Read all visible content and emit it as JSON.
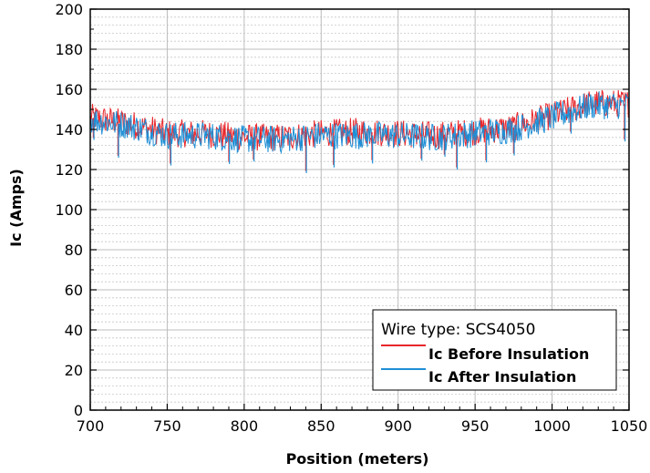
{
  "chart_data": {
    "type": "line",
    "xlabel": "Position (meters)",
    "ylabel": "Ic (Amps)",
    "xlim": [
      700,
      1050
    ],
    "ylim": [
      0,
      200
    ],
    "x_ticks": [
      700,
      750,
      800,
      850,
      900,
      950,
      1000,
      1050
    ],
    "y_ticks": [
      0,
      20,
      40,
      60,
      80,
      100,
      120,
      140,
      160,
      180,
      200
    ],
    "grid": true,
    "legend_title": "Wire type: SCS4050",
    "legend_position": "bottom-right",
    "series": [
      {
        "name": "Ic Before Insulation",
        "color": "#e8262b",
        "x": [
          700,
          725,
          750,
          775,
          800,
          825,
          850,
          875,
          900,
          925,
          950,
          975,
          1000,
          1025,
          1050
        ],
        "values": [
          146,
          143,
          138,
          138,
          136,
          136,
          138,
          139,
          138,
          137,
          139,
          141,
          147,
          153,
          153
        ]
      },
      {
        "name": "Ic After Insulation",
        "color": "#1e8fd6",
        "x": [
          700,
          725,
          750,
          775,
          800,
          825,
          850,
          875,
          900,
          925,
          950,
          975,
          1000,
          1025,
          1050
        ],
        "values": [
          145,
          142,
          137,
          137,
          135,
          135,
          137,
          137,
          137,
          136,
          138,
          140,
          146,
          152,
          152
        ]
      }
    ]
  }
}
